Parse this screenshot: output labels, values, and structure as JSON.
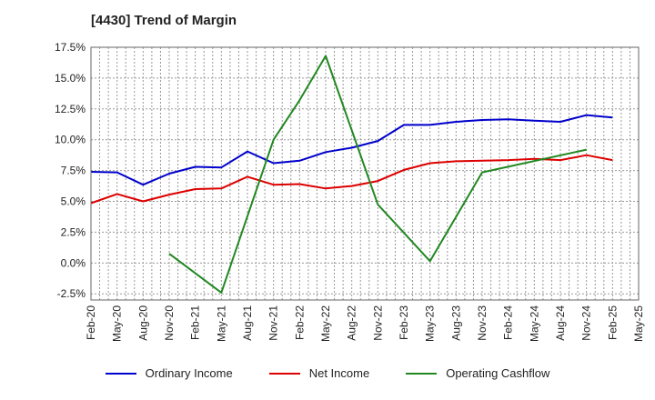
{
  "chart_data": {
    "type": "line",
    "title": "[4430]  Trend of Margin",
    "xlabel": "",
    "ylabel": "",
    "ylim": [
      -3.0,
      17.5
    ],
    "yticks": [
      -2.5,
      0,
      2.5,
      5,
      7.5,
      10,
      12.5,
      15,
      17.5
    ],
    "ytick_labels": [
      "-2.5%",
      "0.0%",
      "2.5%",
      "5.0%",
      "7.5%",
      "10.0%",
      "12.5%",
      "15.0%",
      "17.5%"
    ],
    "grid": true,
    "legend_position": "bottom",
    "categories": [
      "Feb-20",
      "May-20",
      "Aug-20",
      "Nov-20",
      "Feb-21",
      "May-21",
      "Aug-21",
      "Nov-21",
      "Feb-22",
      "May-22",
      "Aug-22",
      "Nov-22",
      "Feb-23",
      "May-23",
      "Aug-23",
      "Nov-23",
      "Feb-24",
      "May-24",
      "Aug-24",
      "Nov-24",
      "Feb-25",
      "May-25"
    ],
    "series": [
      {
        "name": "Ordinary Income",
        "color": "#0000cc",
        "values": [
          7.4,
          7.35,
          6.35,
          7.25,
          7.8,
          7.75,
          9.05,
          8.1,
          8.3,
          9.0,
          9.35,
          9.9,
          11.2,
          11.2,
          11.45,
          11.6,
          11.65,
          11.55,
          11.45,
          12.0,
          11.8,
          null
        ]
      },
      {
        "name": "Net Income",
        "color": "#dd0000",
        "values": [
          4.85,
          5.6,
          5.0,
          5.55,
          6.0,
          6.05,
          7.0,
          6.35,
          6.4,
          6.05,
          6.25,
          6.65,
          7.55,
          8.1,
          8.25,
          8.3,
          8.35,
          8.45,
          8.35,
          8.75,
          8.35,
          null
        ]
      },
      {
        "name": "Operating Cashflow",
        "color": "#228822",
        "values": [
          null,
          null,
          null,
          0.75,
          null,
          -2.4,
          null,
          10.0,
          13.2,
          16.8,
          null,
          4.75,
          null,
          0.15,
          null,
          7.35,
          null,
          null,
          null,
          9.2,
          null,
          null
        ]
      }
    ]
  }
}
